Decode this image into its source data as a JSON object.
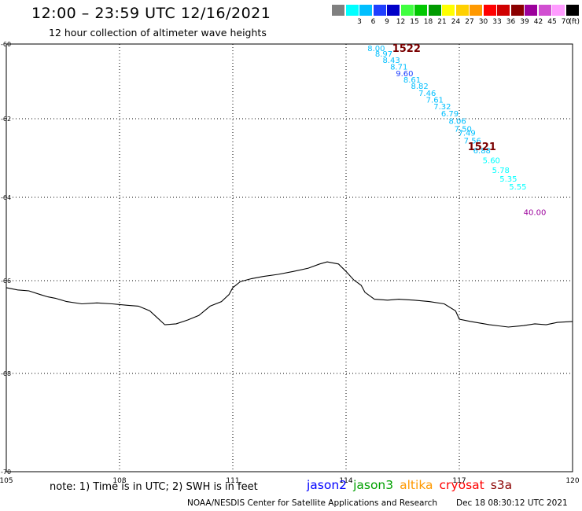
{
  "header": {
    "title": "12:00 – 23:59 UTC 12/16/2021",
    "subtitle": "12 hour collection of altimeter wave heights"
  },
  "colorbar": {
    "unit": "(ft)",
    "swatches": [
      {
        "label": "",
        "color": "#808080"
      },
      {
        "label": "3",
        "color": "#00ffff"
      },
      {
        "label": "6",
        "color": "#00bfff"
      },
      {
        "label": "9",
        "color": "#1f3fff"
      },
      {
        "label": "12",
        "color": "#0000c8"
      },
      {
        "label": "15",
        "color": "#40ff40"
      },
      {
        "label": "18",
        "color": "#00c800"
      },
      {
        "label": "21",
        "color": "#009a00"
      },
      {
        "label": "24",
        "color": "#ffff00"
      },
      {
        "label": "27",
        "color": "#ffd000"
      },
      {
        "label": "30",
        "color": "#ff9900"
      },
      {
        "label": "33",
        "color": "#ff0000"
      },
      {
        "label": "36",
        "color": "#d00000"
      },
      {
        "label": "39",
        "color": "#8b0000"
      },
      {
        "label": "42",
        "color": "#9b009b"
      },
      {
        "label": "45",
        "color": "#d14fd1"
      },
      {
        "label": "70",
        "color": "#ff9cff"
      },
      {
        "label": "",
        "color": "#000000"
      }
    ]
  },
  "chart_data": {
    "type": "scatter",
    "xlim": [
      105,
      120
    ],
    "ylim": [
      -70,
      -60
    ],
    "x_ticks": [
      105,
      108,
      111,
      114,
      117,
      120
    ],
    "y_ticks": [
      -60,
      -62,
      -64,
      -66,
      -68,
      -70
    ],
    "x_tick_labels": [
      "105",
      "108",
      "111",
      "114",
      "117",
      "120"
    ],
    "y_tick_labels": [
      "-60",
      "-62",
      "-64",
      "-66",
      "-68",
      "-70"
    ],
    "grid": true,
    "projection": "polar stereographic",
    "track_labels": [
      {
        "text": "1522",
        "lon": 115.6,
        "lat": -60.1,
        "color": "#7a0000"
      },
      {
        "text": "1521",
        "lon": 117.6,
        "lat": -62.7,
        "color": "#7a0000"
      }
    ],
    "points": [
      {
        "lon": 114.8,
        "lat": -60.1,
        "swh": "8.00",
        "color": "#00bfff"
      },
      {
        "lon": 115.0,
        "lat": -60.25,
        "swh": "8.97",
        "color": "#00bfff"
      },
      {
        "lon": 115.2,
        "lat": -60.42,
        "swh": "8.43",
        "color": "#00bfff"
      },
      {
        "lon": 115.4,
        "lat": -60.6,
        "swh": "8.71",
        "color": "#00bfff"
      },
      {
        "lon": 115.55,
        "lat": -60.78,
        "swh": "9.60",
        "color": "#1f3fff"
      },
      {
        "lon": 115.75,
        "lat": -60.95,
        "swh": "8.61",
        "color": "#00bfff"
      },
      {
        "lon": 115.95,
        "lat": -61.12,
        "swh": "8.82",
        "color": "#00bfff"
      },
      {
        "lon": 116.15,
        "lat": -61.3,
        "swh": "7.46",
        "color": "#00bfff"
      },
      {
        "lon": 116.35,
        "lat": -61.48,
        "swh": "7.61",
        "color": "#00bfff"
      },
      {
        "lon": 116.55,
        "lat": -61.66,
        "swh": "7.32",
        "color": "#00bfff"
      },
      {
        "lon": 116.75,
        "lat": -61.85,
        "swh": "6.79",
        "color": "#00bfff"
      },
      {
        "lon": 116.95,
        "lat": -62.05,
        "swh": "8.06",
        "color": "#00bfff"
      },
      {
        "lon": 117.1,
        "lat": -62.25,
        "swh": "7.50",
        "color": "#00bfff"
      },
      {
        "lon": 117.2,
        "lat": -62.35,
        "swh": "7.49",
        "color": "#00bfff"
      },
      {
        "lon": 117.35,
        "lat": -62.55,
        "swh": "7.56",
        "color": "#00bfff"
      },
      {
        "lon": 117.6,
        "lat": -62.8,
        "swh": "6.88",
        "color": "#00bfff"
      },
      {
        "lon": 117.85,
        "lat": -63.05,
        "swh": "5.60",
        "color": "#00ffff"
      },
      {
        "lon": 118.1,
        "lat": -63.3,
        "swh": "5.78",
        "color": "#00ffff"
      },
      {
        "lon": 118.3,
        "lat": -63.52,
        "swh": "5.35",
        "color": "#00ffff"
      },
      {
        "lon": 118.55,
        "lat": -63.72,
        "swh": "5.55",
        "color": "#00ffff"
      },
      {
        "lon": 119.0,
        "lat": -64.35,
        "swh": "40.00",
        "color": "#9b009b"
      }
    ],
    "coastline": [
      [
        105.0,
        -66.15
      ],
      [
        105.3,
        -66.2
      ],
      [
        105.6,
        -66.22
      ],
      [
        105.9,
        -66.3
      ],
      [
        106.1,
        -66.35
      ],
      [
        106.3,
        -66.38
      ],
      [
        106.6,
        -66.45
      ],
      [
        107.0,
        -66.5
      ],
      [
        107.4,
        -66.48
      ],
      [
        107.8,
        -66.5
      ],
      [
        108.2,
        -66.53
      ],
      [
        108.5,
        -66.55
      ],
      [
        108.8,
        -66.65
      ],
      [
        109.0,
        -66.8
      ],
      [
        109.2,
        -66.95
      ],
      [
        109.5,
        -66.93
      ],
      [
        109.8,
        -66.85
      ],
      [
        110.1,
        -66.75
      ],
      [
        110.4,
        -66.55
      ],
      [
        110.7,
        -66.45
      ],
      [
        110.9,
        -66.3
      ],
      [
        111.0,
        -66.15
      ],
      [
        111.2,
        -66.02
      ],
      [
        111.5,
        -65.95
      ],
      [
        111.8,
        -65.9
      ],
      [
        112.2,
        -65.85
      ],
      [
        112.6,
        -65.78
      ],
      [
        113.0,
        -65.7
      ],
      [
        113.3,
        -65.6
      ],
      [
        113.5,
        -65.55
      ],
      [
        113.8,
        -65.6
      ],
      [
        114.0,
        -65.78
      ],
      [
        114.2,
        -65.98
      ],
      [
        114.4,
        -66.1
      ],
      [
        114.5,
        -66.25
      ],
      [
        114.75,
        -66.4
      ],
      [
        115.1,
        -66.42
      ],
      [
        115.4,
        -66.4
      ],
      [
        115.8,
        -66.42
      ],
      [
        116.2,
        -66.45
      ],
      [
        116.6,
        -66.5
      ],
      [
        116.9,
        -66.65
      ],
      [
        117.0,
        -66.83
      ],
      [
        117.3,
        -66.88
      ],
      [
        117.8,
        -66.95
      ],
      [
        118.3,
        -67.0
      ],
      [
        118.7,
        -66.97
      ],
      [
        119.0,
        -66.93
      ],
      [
        119.3,
        -66.95
      ],
      [
        119.6,
        -66.9
      ],
      [
        120.0,
        -66.88
      ]
    ]
  },
  "footer": {
    "note": "note: 1) Time is in UTC; 2) SWH is in feet",
    "missions": [
      {
        "name": "jason2",
        "color": "#0000ff"
      },
      {
        "name": "jason3",
        "color": "#00a000"
      },
      {
        "name": "altika",
        "color": "#ff9900"
      },
      {
        "name": "cryosat",
        "color": "#ff0000"
      },
      {
        "name": "s3a",
        "color": "#8b0000"
      }
    ],
    "credit": "NOAA/NESDIS Center for Satellite Applications and Research",
    "timestamp": "Dec 18 08:30:12 UTC 2021"
  }
}
